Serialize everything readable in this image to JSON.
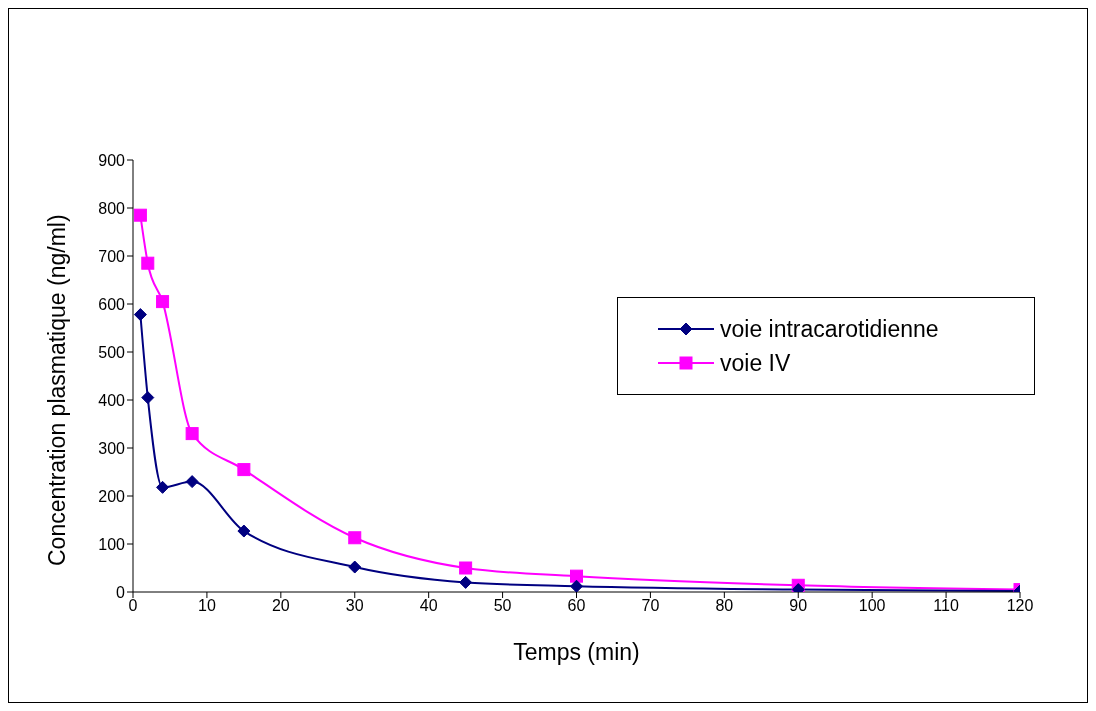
{
  "chart_data": {
    "type": "line",
    "xlabel": "Temps (min)",
    "ylabel": "Concentration plasmatique (ng/ml)",
    "x": [
      1,
      2,
      4,
      8,
      15,
      30,
      45,
      60,
      90,
      120
    ],
    "series": [
      {
        "name": "voie intracarotidienne",
        "color": "#000080",
        "marker": "diamond",
        "values": [
          578,
          405,
          218,
          230,
          127,
          52,
          20,
          12,
          5,
          2
        ]
      },
      {
        "name": "voie IV",
        "color": "#ff00ff",
        "marker": "square",
        "values": [
          785,
          685,
          605,
          330,
          255,
          113,
          50,
          33,
          14,
          5
        ]
      }
    ],
    "xlim": [
      0,
      120
    ],
    "xticks": [
      0,
      10,
      20,
      30,
      40,
      50,
      60,
      70,
      80,
      90,
      100,
      110,
      120
    ],
    "ylim": [
      0,
      900
    ],
    "yticks": [
      0,
      100,
      200,
      300,
      400,
      500,
      600,
      700,
      800,
      900
    ],
    "grid": false,
    "legend": "right",
    "line_style": "solid"
  }
}
